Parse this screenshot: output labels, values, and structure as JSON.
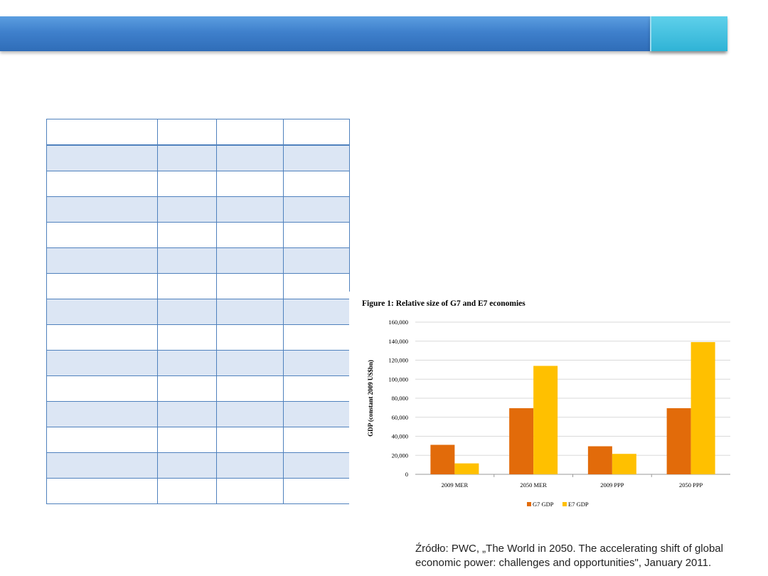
{
  "chart_data": {
    "type": "bar",
    "title": "Figure 1: Relative size of G7 and E7 economies",
    "ylabel": "GDP (constant 2009 US$bn)",
    "xlabel": "",
    "categories": [
      "2009 MER",
      "2050 MER",
      "2009 PPP",
      "2050 PPP"
    ],
    "series": [
      {
        "name": "G7 GDP",
        "values": [
          31000,
          69500,
          29500,
          69500
        ],
        "color": "#e26b0a"
      },
      {
        "name": "E7 GDP",
        "values": [
          11500,
          114000,
          21500,
          139000
        ],
        "color": "#ffc000"
      }
    ],
    "ylim": [
      0,
      160000
    ],
    "yticks": [
      "0",
      "20,000",
      "40,000",
      "60,000",
      "80,000",
      "100,000",
      "120,000",
      "140,000",
      "160,000"
    ],
    "grid": true,
    "legend": "bottom"
  },
  "source_text": "Źródło: PWC, „The World in 2050. The accelerating shift of global economic power: challenges and opportunities\", January 2011."
}
